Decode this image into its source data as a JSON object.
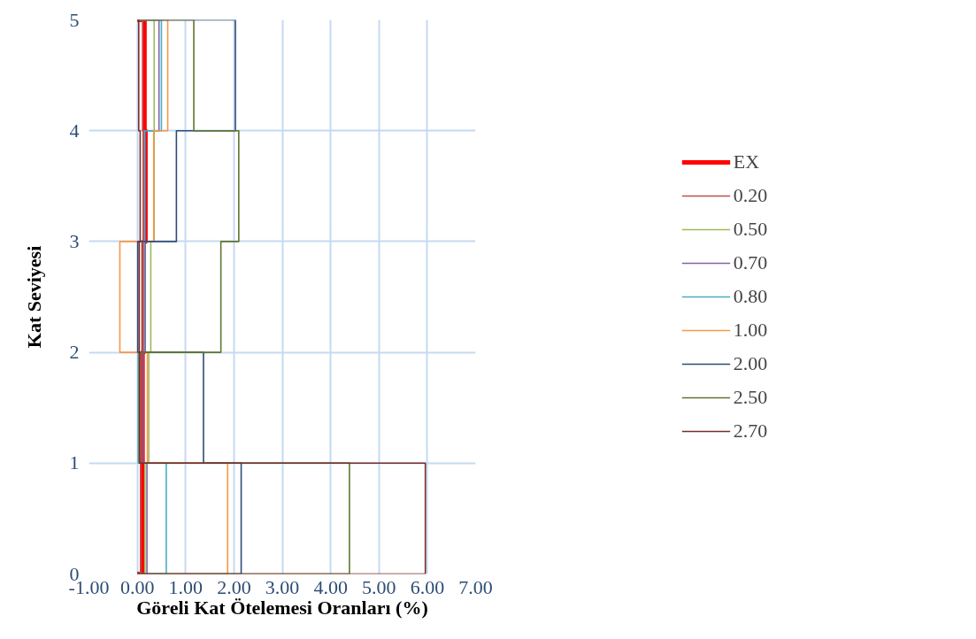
{
  "chart_data": {
    "type": "line",
    "orientation": "horizontal",
    "xlabel": "Göreli Kat Ötelemesi Oranları (%)",
    "ylabel": "Kat Seviyesi",
    "x": [
      0,
      0,
      1,
      1,
      2,
      2,
      3,
      3,
      4,
      4,
      5,
      5
    ],
    "xlim": [
      -1,
      7
    ],
    "xticks": [
      {
        "value": -1,
        "label": "-1.00"
      },
      {
        "value": 0,
        "label": "0.00"
      },
      {
        "value": 1,
        "label": "1.00"
      },
      {
        "value": 2,
        "label": "2.00"
      },
      {
        "value": 3,
        "label": "3.00"
      },
      {
        "value": 4,
        "label": "4.00"
      },
      {
        "value": 5,
        "label": "5.00"
      },
      {
        "value": 6,
        "label": "6.00"
      },
      {
        "value": 7,
        "label": "7.00"
      }
    ],
    "ylim": [
      0,
      5
    ],
    "yticks": [
      0,
      1,
      2,
      3,
      4,
      5
    ],
    "grid": true,
    "legend": "right",
    "series": [
      {
        "name": "EX",
        "color": "#ff0000",
        "values": [
          0,
          0.1,
          0.1,
          0.11,
          0.11,
          0.13,
          0.13,
          0.17,
          0.17,
          0.15,
          0.15,
          0
        ]
      },
      {
        "name": "0.20",
        "color": "#c0504d",
        "values": [
          0,
          0.07,
          0.07,
          0.08,
          0.08,
          0.1,
          0.1,
          0.12,
          0.12,
          0.11,
          0.11,
          0
        ]
      },
      {
        "name": "0.50",
        "color": "#9bbb59",
        "values": [
          0,
          0.16,
          0.16,
          0.24,
          0.24,
          0.28,
          0.28,
          0.35,
          0.35,
          0.35,
          0.35,
          0
        ]
      },
      {
        "name": "0.70",
        "color": "#8064a2",
        "values": [
          0,
          0.2,
          0.2,
          0.12,
          0.12,
          0.16,
          0.16,
          0.16,
          0.16,
          0.45,
          0.45,
          0
        ]
      },
      {
        "name": "0.80",
        "color": "#4bacc6",
        "values": [
          0,
          0.6,
          0.6,
          0.02,
          0.02,
          0.14,
          0.14,
          0.15,
          0.15,
          0.5,
          0.5,
          0
        ]
      },
      {
        "name": "1.00",
        "color": "#f79646",
        "values": [
          0,
          1.87,
          1.87,
          0.21,
          0.21,
          -0.36,
          -0.36,
          0.34,
          0.34,
          0.63,
          0.63,
          0
        ]
      },
      {
        "name": "2.00",
        "color": "#2c4d75",
        "values": [
          0,
          2.15,
          2.15,
          1.37,
          1.37,
          0.01,
          0.01,
          0.81,
          0.81,
          2.03,
          2.03,
          0
        ]
      },
      {
        "name": "2.50",
        "color": "#5f7530",
        "values": [
          0,
          4.39,
          4.39,
          0.04,
          0.04,
          1.73,
          1.73,
          2.1,
          2.1,
          1.17,
          1.17,
          0
        ]
      },
      {
        "name": "2.70",
        "color": "#772c2a",
        "values": [
          0,
          5.96,
          5.96,
          0.05,
          0.05,
          0.04,
          0.04,
          0.06,
          0.06,
          0.03,
          0.03,
          0
        ]
      }
    ]
  }
}
